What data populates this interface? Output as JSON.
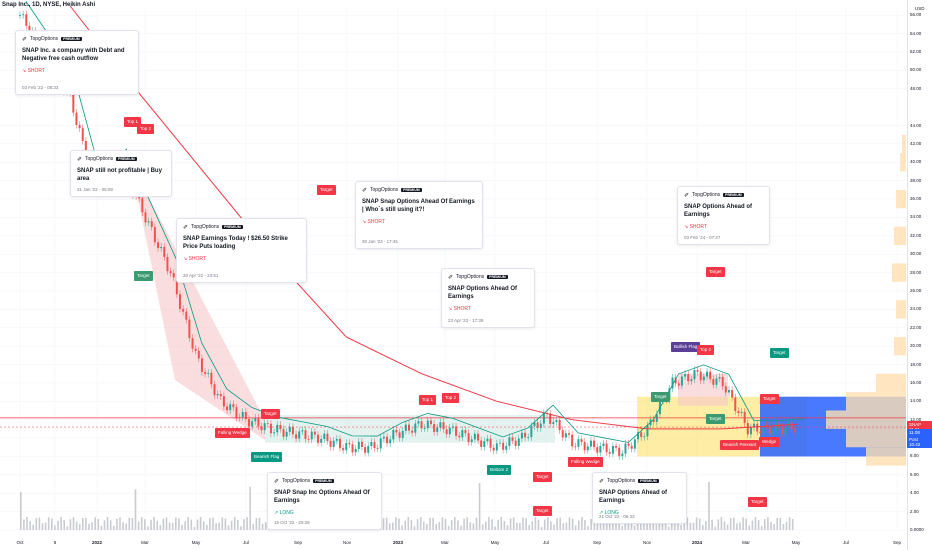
{
  "header": {
    "title": "Snap Inc., 1D, NYSE, Heikin Ashi"
  },
  "colors": {
    "bull": "#26a69a",
    "bear": "#ef5350",
    "red_line": "#f23645",
    "ma_teal": "#089981",
    "ma_orange": "#ff9800",
    "ma_blue": "#2962ff",
    "zone_red": "#f7c6c9",
    "zone_green": "#c8e6dd",
    "zone_orange": "#fdd835",
    "zone_blue": "#2962ff",
    "volume": "#b2b5be"
  },
  "chart_data": {
    "type": "candlestick",
    "title": "Snap Inc., 1D, NYSE, Heikin Ashi",
    "x_ticks": [
      "Oct",
      "8",
      "2022",
      "Mar",
      "May",
      "Jul",
      "Sep",
      "Nov",
      "2023",
      "Mar",
      "May",
      "Jul",
      "Sep",
      "Nov",
      "2024",
      "Mar",
      "May",
      "Jul",
      "Sep"
    ],
    "y_ticks": [
      0.0,
      2.0,
      4.0,
      6.0,
      8.0,
      10.0,
      12.0,
      14.0,
      16.0,
      18.0,
      20.0,
      22.0,
      24.0,
      26.0,
      28.0,
      30.0,
      32.0,
      34.0,
      36.0,
      38.0,
      40.0,
      42.0,
      44.0,
      48.0,
      50.0,
      52.0,
      54.0,
      56.0
    ],
    "y_unit": "USD",
    "ylim": [
      0,
      57
    ],
    "price_path": [
      {
        "t": "Oct '21",
        "price": 56
      },
      {
        "t": "Nov '21",
        "price": 52
      },
      {
        "t": "Dec '21",
        "price": 47
      },
      {
        "t": "Jan '22",
        "price": 37
      },
      {
        "t": "Feb '22",
        "price": 40
      },
      {
        "t": "Mar '22",
        "price": 34
      },
      {
        "t": "Apr '22",
        "price": 28
      },
      {
        "t": "May '22",
        "price": 19
      },
      {
        "t": "Jun '22",
        "price": 14
      },
      {
        "t": "Jul '22",
        "price": 12
      },
      {
        "t": "Aug '22",
        "price": 11
      },
      {
        "t": "Sep '22",
        "price": 10.5
      },
      {
        "t": "Oct '22",
        "price": 10
      },
      {
        "t": "Nov '22",
        "price": 9
      },
      {
        "t": "Dec '22",
        "price": 9
      },
      {
        "t": "Jan '23",
        "price": 10.5
      },
      {
        "t": "Feb '23",
        "price": 11.5
      },
      {
        "t": "Mar '23",
        "price": 11
      },
      {
        "t": "Apr '23",
        "price": 10
      },
      {
        "t": "May '23",
        "price": 9
      },
      {
        "t": "Jun '23",
        "price": 10
      },
      {
        "t": "Jul '23",
        "price": 12.5
      },
      {
        "t": "Aug '23",
        "price": 9.5
      },
      {
        "t": "Sep '23",
        "price": 9
      },
      {
        "t": "Oct '23",
        "price": 8.5
      },
      {
        "t": "Nov '23",
        "price": 11
      },
      {
        "t": "Dec '23",
        "price": 16
      },
      {
        "t": "Jan '24",
        "price": 17
      },
      {
        "t": "Feb '24",
        "price": 16
      },
      {
        "t": "Mar '24",
        "price": 11
      },
      {
        "t": "Apr '24",
        "price": 11
      },
      {
        "t": "May '24",
        "price": 11.21
      }
    ],
    "red_ma": [
      {
        "t": "Dec '21",
        "price": 57
      },
      {
        "t": "Feb '22",
        "price": 50
      },
      {
        "t": "May '22",
        "price": 40
      },
      {
        "t": "Aug '22",
        "price": 30
      },
      {
        "t": "Nov '22",
        "price": 21
      },
      {
        "t": "Feb '23",
        "price": 17
      },
      {
        "t": "May '23",
        "price": 14
      },
      {
        "t": "Aug '23",
        "price": 12
      },
      {
        "t": "Nov '23",
        "price": 11
      },
      {
        "t": "Feb '24",
        "price": 11
      },
      {
        "t": "May '24",
        "price": 11.5
      }
    ],
    "last_price": 11.21,
    "price_labels": [
      "SNAP",
      "11.21",
      "11.08",
      "Post",
      "10.42"
    ]
  },
  "ideas": [
    {
      "title": "SNAP Inc. a company with Debt and Negative free cash outflow",
      "direction": "SHORT",
      "date": "03 Feb '22 - 08:33"
    },
    {
      "title": "SNAP still not profitable | Buy area",
      "direction": "",
      "date": "31 Jan '22 - 05:08"
    },
    {
      "title": "SNAP Earnings Today ! $26.50 Strike Price Puts loading",
      "direction": "SHORT",
      "date": "20 Apr '22 - 23:51"
    },
    {
      "title": "SNAP Snap Options Ahead Of Earnings | Who`s still using it?!",
      "direction": "SHORT",
      "date": "30 Jan '23 - 17:45"
    },
    {
      "title": "SNAP  Options Ahead Of Earnings",
      "direction": "SHORT",
      "date": "23 Apr '23 - 17:39"
    },
    {
      "title": "SNAP  Options Ahead of Earnings",
      "direction": "SHORT",
      "date": "03 Feb '24 - 07:27"
    },
    {
      "title": "SNAP Snap Inc Options Ahead Of Earnings",
      "direction": "LONG",
      "date": "15 Oct '22 - 20:28"
    },
    {
      "title": "SNAP Options Ahead of Earnings",
      "direction": "LONG",
      "date": "21 Oct '23 - 06:22"
    }
  ],
  "author": "TopgOptions",
  "premium": "PREMIUM",
  "labels": {
    "top1": "Top 1",
    "top2": "Top 2",
    "target": "Target",
    "falling_wedge": "Falling Wedge",
    "bearish_flag": "Bearish Flag",
    "bottom2": "Bottom 2",
    "bullish_flag": "Bullish Flag",
    "bearish_pennant": "Bearish Pennant",
    "wedge": "Wedge"
  }
}
